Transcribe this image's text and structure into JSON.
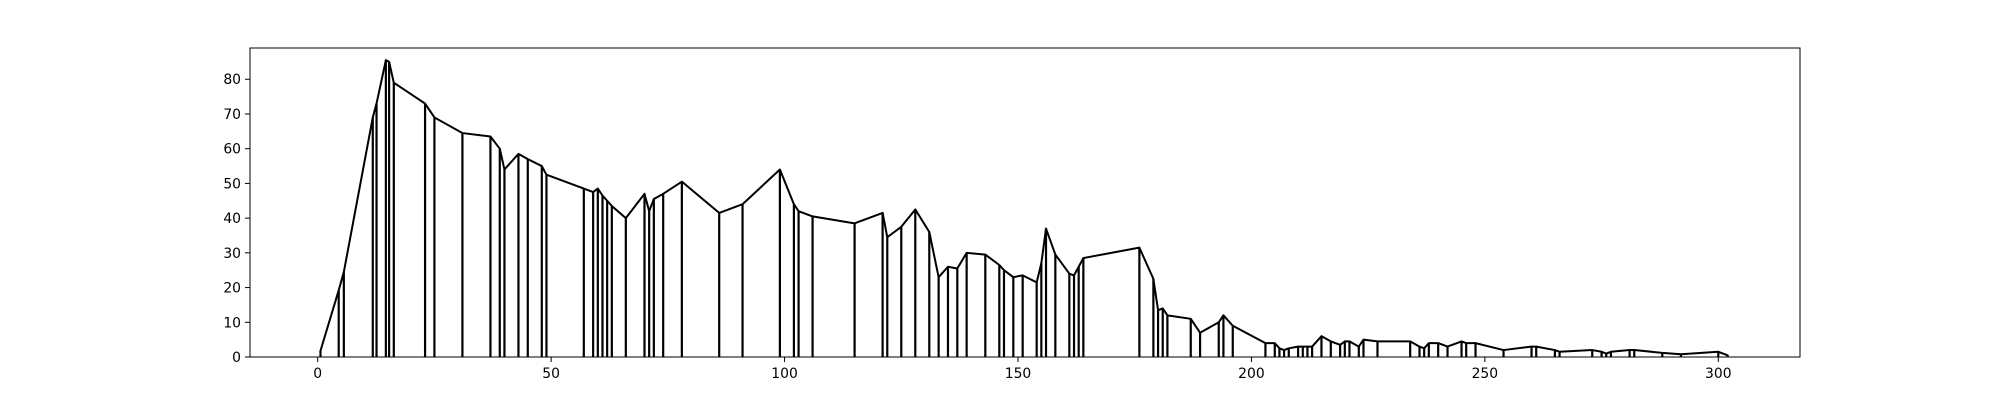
{
  "chart_data": {
    "type": "line",
    "title": "",
    "xlabel": "",
    "ylabel": "",
    "xlim": [
      -14.5,
      317.5
    ],
    "ylim": [
      0,
      89
    ],
    "xticks": [
      0,
      50,
      100,
      150,
      200,
      250,
      300
    ],
    "yticks": [
      0,
      10,
      20,
      30,
      40,
      50,
      60,
      70,
      80
    ],
    "grid": false,
    "vertical_drop_lines": true,
    "line_color": "#000000",
    "series": [
      {
        "x": [
          0.6,
          4.5,
          5.6,
          11.8,
          12.6,
          14.6,
          15.3,
          16.3,
          23.0,
          25.0,
          31.0,
          37.0,
          39.0,
          40.0,
          43.0,
          45.0,
          48.0,
          49.0,
          57.0,
          59.0,
          60.0,
          61.0,
          62.0,
          63.0,
          66.0,
          70.0,
          71.0,
          72.0,
          74.0,
          78.0,
          86.0,
          91.0,
          99.0,
          102.0,
          103.0,
          106.0,
          115.0,
          121.0,
          122.0,
          125.0,
          128.0,
          131.0,
          133.0,
          135.0,
          137.0,
          139.0,
          143.0,
          146.0,
          147.0,
          149.0,
          151.0,
          154.0,
          155.0,
          156.0,
          158.0,
          161.0,
          162.0,
          163.0,
          164.0,
          176.0,
          179.0,
          180.0,
          181.0,
          182.0,
          187.0,
          189.0,
          193.0,
          194.0,
          196.0,
          203.0,
          205.0,
          206.0,
          207.0,
          208.0,
          210.0,
          211.0,
          212.0,
          213.0,
          215.0,
          217.0,
          219.0,
          220.0,
          221.0,
          223.0,
          224.0,
          227.0,
          234.0,
          236.0,
          237.0,
          238.0,
          240.0,
          242.0,
          245.0,
          246.0,
          248.0,
          254.0,
          260.0,
          261.0,
          265.0,
          266.0,
          273.0,
          275.0,
          276.0,
          277.0,
          281.0,
          282.0,
          288.0,
          292.0,
          300.0,
          302.0
        ],
        "y": [
          1.8,
          19.2,
          24.5,
          69.0,
          73.0,
          85.5,
          85.0,
          79.0,
          73.0,
          69.0,
          64.5,
          63.5,
          60.0,
          54.0,
          58.5,
          57.0,
          55.0,
          52.5,
          48.5,
          47.5,
          48.5,
          46.5,
          45.0,
          43.5,
          40.0,
          47.0,
          42.0,
          45.5,
          47.0,
          50.5,
          41.5,
          44.0,
          54.0,
          44.0,
          42.0,
          40.5,
          38.5,
          41.5,
          34.5,
          37.5,
          42.5,
          36.0,
          23.0,
          26.0,
          25.5,
          30.0,
          29.5,
          26.5,
          25.0,
          23.0,
          23.5,
          21.5,
          27.0,
          37.0,
          29.5,
          24.0,
          23.5,
          26.0,
          28.5,
          31.5,
          22.5,
          13.5,
          14.0,
          12.0,
          11.0,
          7.0,
          10.0,
          12.0,
          9.0,
          4.0,
          4.0,
          2.5,
          2.0,
          2.5,
          3.0,
          3.0,
          3.0,
          3.0,
          6.0,
          4.5,
          3.5,
          4.5,
          4.5,
          3.0,
          5.0,
          4.5,
          4.5,
          3.0,
          2.5,
          4.0,
          4.0,
          3.0,
          4.5,
          4.0,
          4.0,
          2.0,
          3.0,
          3.0,
          2.0,
          1.5,
          2.0,
          1.5,
          1.0,
          1.5,
          2.0,
          2.0,
          1.2,
          0.8,
          1.5,
          0.5
        ]
      }
    ]
  }
}
